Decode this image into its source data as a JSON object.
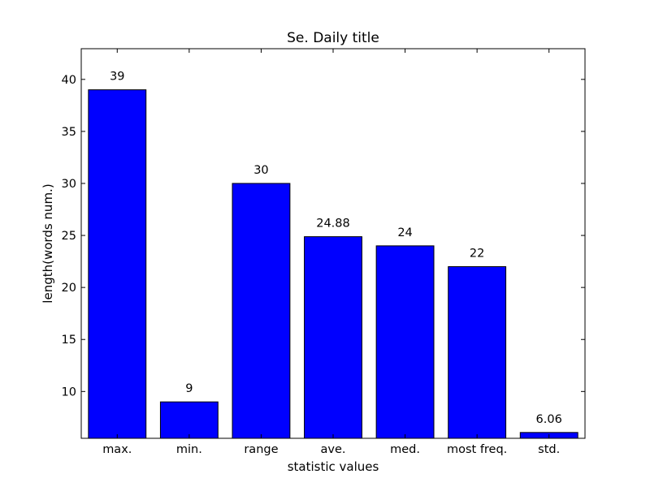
{
  "chart_data": {
    "type": "bar",
    "title": "Se. Daily title",
    "xlabel": "statistic values",
    "ylabel": "length(words num.)",
    "categories": [
      "max.",
      "min.",
      "range",
      "ave.",
      "med.",
      "most freq.",
      "std."
    ],
    "values": [
      39,
      9,
      30,
      24.88,
      24,
      22,
      6.06
    ],
    "value_labels": [
      "39",
      "9",
      "30",
      "24.88",
      "24",
      "22",
      "6.06"
    ],
    "ylim": [
      5.5,
      42.95
    ],
    "yticks": [
      10,
      15,
      20,
      25,
      30,
      35,
      40
    ],
    "bar_color": "#0000ff",
    "edge_color": "#000000",
    "grid": false,
    "legend": "none"
  }
}
